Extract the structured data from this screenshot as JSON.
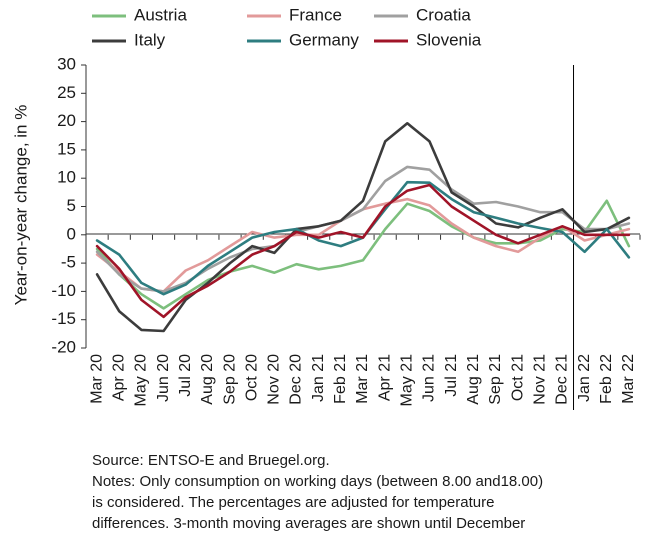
{
  "chart_data": {
    "type": "line",
    "ylabel": "Year-on-year change, in %",
    "ylim": [
      -20,
      30
    ],
    "yticks": [
      30,
      25,
      20,
      15,
      10,
      5,
      0,
      -5,
      -10,
      -15,
      -20
    ],
    "categories": [
      "Mar 20",
      "Apr 20",
      "May 20",
      "Jun 20",
      "Jul 20",
      "Aug 20",
      "Sep 20",
      "Oct 20",
      "Nov 20",
      "Dec 20",
      "Jan 21",
      "Feb 21",
      "Mar 21",
      "Apr 21",
      "May 21",
      "Jun 21",
      "Jul 21",
      "Aug 21",
      "Sep 21",
      "Oct 21",
      "Nov 21",
      "Dec 21",
      "Jan 22",
      "Feb 22",
      "Mar 22"
    ],
    "divider_after_category": "Dec 21",
    "legend_position": "top",
    "grid": false,
    "series": [
      {
        "name": "Austria",
        "color": "#7dbf7d",
        "values": [
          -2.5,
          -7,
          -10.5,
          -13,
          -10.5,
          -8,
          -6.5,
          -5.5,
          -6.7,
          -5.2,
          -6.1,
          -5.5,
          -4.5,
          1,
          5.5,
          4.2,
          1.5,
          -0.5,
          -1.5,
          -1.5,
          -1,
          1,
          0.5,
          6,
          -2
        ]
      },
      {
        "name": "France",
        "color": "#e29a9a",
        "values": [
          -3.5,
          -6.5,
          -9.5,
          -10,
          -6.3,
          -4.5,
          -2,
          0.5,
          -0.5,
          0,
          0,
          2.5,
          4.5,
          5.5,
          6.3,
          5.2,
          2,
          -0.5,
          -2,
          -3,
          -0.5,
          1.5,
          -1,
          0,
          1
        ]
      },
      {
        "name": "Croatia",
        "color": "#a0a0a0",
        "values": [
          -3,
          -7,
          -9.5,
          -10,
          -8.5,
          -6,
          -4,
          -2.5,
          -2,
          0.5,
          1.5,
          2.5,
          4.5,
          9.5,
          12,
          11.5,
          8,
          5.5,
          5.8,
          5,
          4,
          4,
          1,
          1,
          2
        ]
      },
      {
        "name": "Italy",
        "color": "#3c3c3c",
        "values": [
          -7,
          -13.5,
          -16.8,
          -17,
          -11.5,
          -8.5,
          -5,
          -2,
          -3.2,
          1,
          1.5,
          2.5,
          6,
          16.5,
          19.7,
          16.5,
          7.5,
          5,
          2,
          1.3,
          3,
          4.5,
          0.5,
          1,
          3
        ]
      },
      {
        "name": "Germany",
        "color": "#2e7d80",
        "values": [
          -1,
          -3.5,
          -8.5,
          -10.5,
          -8.8,
          -5.5,
          -3,
          -0.5,
          0.5,
          1,
          -1,
          -2,
          -0.5,
          4.5,
          9.3,
          9.2,
          6.3,
          4,
          3,
          2,
          1.2,
          0.5,
          -3,
          1,
          -4
        ]
      },
      {
        "name": "Slovenia",
        "color": "#a01428",
        "values": [
          -2,
          -6,
          -11.5,
          -14.5,
          -11,
          -9,
          -6.5,
          -3.5,
          -2,
          0.5,
          -0.5,
          0.5,
          -0.5,
          5,
          7.8,
          8.8,
          5,
          2.5,
          0,
          -1.5,
          0,
          1.5,
          0,
          0,
          0
        ]
      }
    ]
  },
  "notes": {
    "source": "Source: ENTSO-E and Bruegel.org.",
    "line1": "Notes: Only consumption on working days (between 8.00 and18.00)",
    "line2": "is considered. The percentages are adjusted for temperature",
    "line3": "differences. 3-month moving averages are shown until December"
  }
}
